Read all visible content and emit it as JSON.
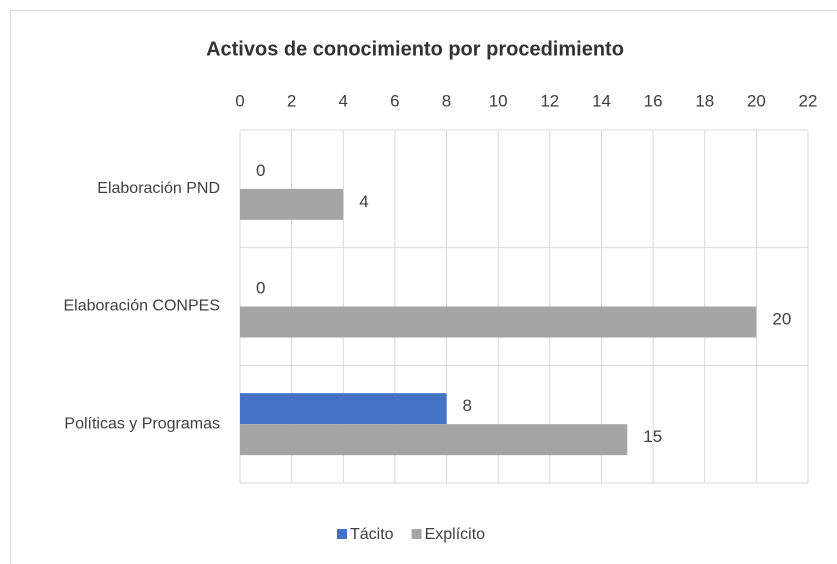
{
  "chart_data": {
    "type": "barh",
    "title": "Activos de conocimiento por procedimiento",
    "categories": [
      "Elaboración PND",
      "Elaboración CONPES",
      "Políticas y Programas"
    ],
    "series": [
      {
        "name": "Tácito",
        "color": "#4472c4",
        "values": [
          0,
          0,
          8
        ]
      },
      {
        "name": "Explícito",
        "color": "#a5a5a5",
        "values": [
          4,
          20,
          15
        ]
      }
    ],
    "xlim": [
      0,
      22
    ],
    "xticks": [
      0,
      2,
      4,
      6,
      8,
      10,
      12,
      14,
      16,
      18,
      20,
      22
    ],
    "grid": true,
    "legend": "bottom"
  }
}
